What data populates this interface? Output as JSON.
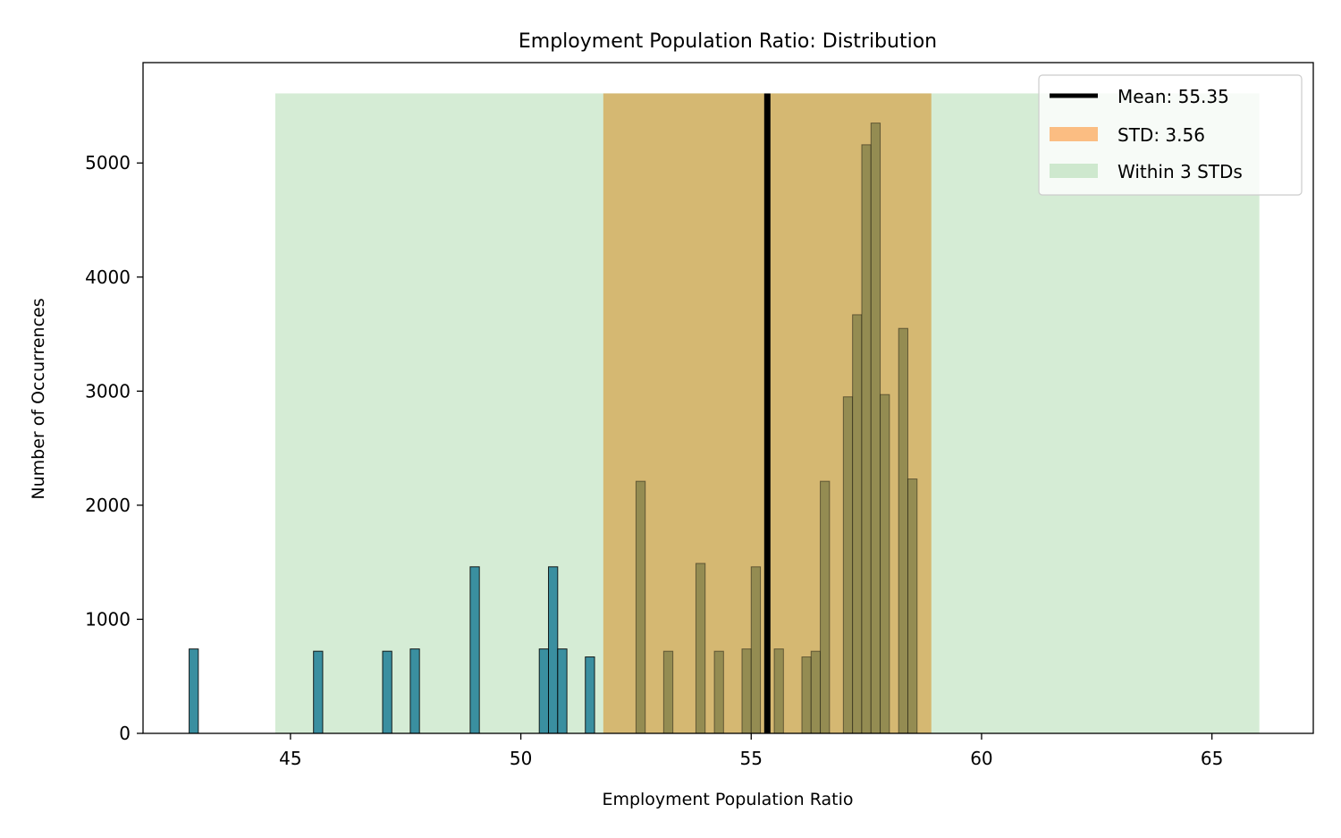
{
  "chart_data": {
    "type": "bar",
    "title": "Employment Population Ratio: Distribution",
    "xlabel": "Employment Population Ratio",
    "ylabel": "Number of Occurrences",
    "xlim": [
      41.8,
      67.2
    ],
    "ylim": [
      0,
      5880
    ],
    "xticks": [
      45,
      50,
      55,
      60,
      65
    ],
    "yticks": [
      0,
      1000,
      2000,
      3000,
      4000,
      5000
    ],
    "grid": false,
    "legend_position": "top-right",
    "bin_width": 0.2,
    "bars": [
      {
        "x": 42.9,
        "count": 740
      },
      {
        "x": 45.6,
        "count": 720
      },
      {
        "x": 47.1,
        "count": 720
      },
      {
        "x": 47.7,
        "count": 740
      },
      {
        "x": 49.0,
        "count": 1460
      },
      {
        "x": 50.5,
        "count": 740
      },
      {
        "x": 50.7,
        "count": 1460
      },
      {
        "x": 50.9,
        "count": 740
      },
      {
        "x": 51.5,
        "count": 670
      },
      {
        "x": 52.6,
        "count": 2210
      },
      {
        "x": 53.2,
        "count": 720
      },
      {
        "x": 53.9,
        "count": 1490
      },
      {
        "x": 54.3,
        "count": 720
      },
      {
        "x": 54.9,
        "count": 740
      },
      {
        "x": 55.1,
        "count": 1460
      },
      {
        "x": 55.6,
        "count": 740
      },
      {
        "x": 56.2,
        "count": 670
      },
      {
        "x": 56.4,
        "count": 720
      },
      {
        "x": 56.6,
        "count": 2210
      },
      {
        "x": 57.1,
        "count": 2950
      },
      {
        "x": 57.3,
        "count": 3670
      },
      {
        "x": 57.5,
        "count": 5160
      },
      {
        "x": 57.7,
        "count": 5350
      },
      {
        "x": 57.9,
        "count": 2970
      },
      {
        "x": 58.3,
        "count": 3550
      },
      {
        "x": 58.5,
        "count": 2230
      }
    ],
    "mean": 55.35,
    "std": 3.56,
    "std_band": [
      51.79,
      58.91
    ],
    "three_std_band": [
      44.67,
      66.03
    ],
    "band_top": 5610,
    "legend": [
      {
        "key": "mean",
        "label": "Mean: 55.35"
      },
      {
        "key": "std",
        "label": "STD: 3.56"
      },
      {
        "key": "three_std",
        "label": "Within 3 STDs"
      }
    ],
    "colors": {
      "bar": "#1f77b4",
      "bar_edge": "#000000",
      "std_band": "#ff7f0e",
      "three_std_band": "#2ca02c",
      "mean_line": "#000000"
    }
  }
}
